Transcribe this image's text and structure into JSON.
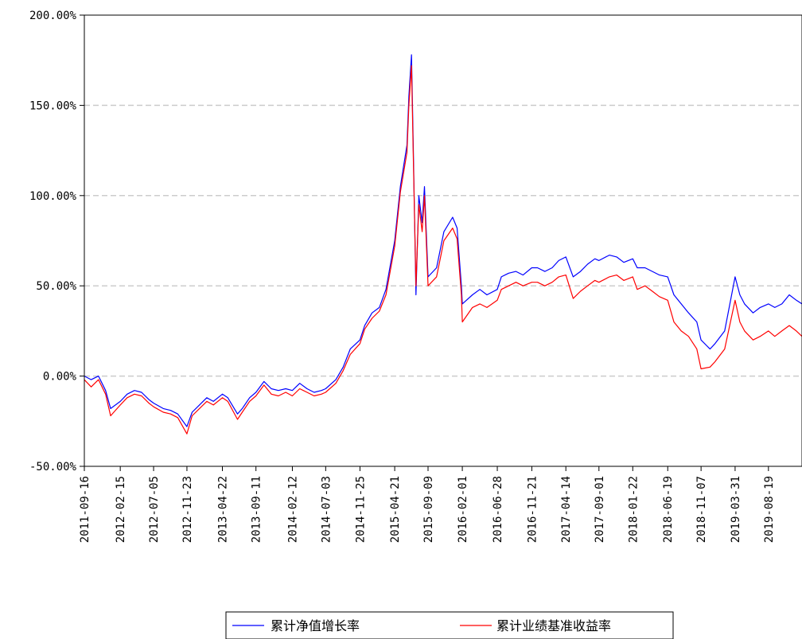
{
  "chart_data": {
    "type": "line",
    "title": "",
    "xlabel": "",
    "ylabel": "",
    "ylim": [
      -0.5,
      2.0
    ],
    "y_ticks": [
      {
        "value": 2.0,
        "label": "200.00%"
      },
      {
        "value": 1.5,
        "label": "150.00%"
      },
      {
        "value": 1.0,
        "label": "100.00%"
      },
      {
        "value": 0.5,
        "label": "50.00%"
      },
      {
        "value": 0.0,
        "label": "0.00%"
      },
      {
        "value": -0.5,
        "label": "-50.00%"
      }
    ],
    "grid": "horizontal dashed",
    "legend_position": "bottom-center",
    "x_ticks": [
      "2011-09-16",
      "2012-02-15",
      "2012-07-05",
      "2012-11-23",
      "2013-04-22",
      "2013-09-11",
      "2014-02-12",
      "2014-07-03",
      "2014-11-25",
      "2015-04-21",
      "2015-09-09",
      "2016-02-01",
      "2016-06-28",
      "2016-11-21",
      "2017-04-14",
      "2017-09-01",
      "2018-01-22",
      "2018-06-19",
      "2018-11-07",
      "2019-03-31",
      "2019-08-19"
    ],
    "x_range": [
      "2011-09-16",
      "2020-01-08"
    ],
    "x": [
      "2011-09-16",
      "2011-10-15",
      "2011-11-15",
      "2011-12-15",
      "2012-01-05",
      "2012-02-15",
      "2012-03-15",
      "2012-04-15",
      "2012-05-15",
      "2012-06-15",
      "2012-07-05",
      "2012-08-15",
      "2012-09-15",
      "2012-10-15",
      "2012-11-23",
      "2012-12-15",
      "2013-01-15",
      "2013-02-15",
      "2013-03-15",
      "2013-04-22",
      "2013-05-15",
      "2013-06-25",
      "2013-07-15",
      "2013-08-15",
      "2013-09-11",
      "2013-10-15",
      "2013-11-15",
      "2013-12-15",
      "2014-01-15",
      "2014-02-12",
      "2014-03-15",
      "2014-04-15",
      "2014-05-15",
      "2014-06-15",
      "2014-07-03",
      "2014-08-15",
      "2014-09-15",
      "2014-10-15",
      "2014-11-25",
      "2014-12-15",
      "2015-01-15",
      "2015-02-15",
      "2015-03-15",
      "2015-04-21",
      "2015-05-15",
      "2015-06-12",
      "2015-06-20",
      "2015-07-01",
      "2015-07-08",
      "2015-07-20",
      "2015-08-01",
      "2015-08-15",
      "2015-08-25",
      "2015-09-09",
      "2015-10-15",
      "2015-11-15",
      "2015-12-22",
      "2016-01-10",
      "2016-01-28",
      "2016-02-01",
      "2016-03-15",
      "2016-04-15",
      "2016-05-15",
      "2016-06-28",
      "2016-07-15",
      "2016-08-15",
      "2016-09-15",
      "2016-10-15",
      "2016-11-21",
      "2016-12-15",
      "2017-01-15",
      "2017-02-15",
      "2017-03-15",
      "2017-04-14",
      "2017-05-15",
      "2017-06-15",
      "2017-07-15",
      "2017-08-15",
      "2017-09-01",
      "2017-10-15",
      "2017-11-15",
      "2017-12-15",
      "2018-01-22",
      "2018-02-10",
      "2018-03-15",
      "2018-04-15",
      "2018-05-15",
      "2018-06-19",
      "2018-07-15",
      "2018-08-15",
      "2018-09-15",
      "2018-10-20",
      "2018-11-07",
      "2018-12-15",
      "2019-01-05",
      "2019-02-15",
      "2019-03-31",
      "2019-04-20",
      "2019-05-10",
      "2019-06-15",
      "2019-07-15",
      "2019-08-19",
      "2019-09-15",
      "2019-10-15",
      "2019-11-15",
      "2019-12-15",
      "2020-01-08"
    ],
    "series": [
      {
        "name": "累计净值增长率",
        "color": "#0000ff",
        "values": [
          0.0,
          -0.02,
          0.0,
          -0.08,
          -0.18,
          -0.14,
          -0.1,
          -0.08,
          -0.09,
          -0.13,
          -0.15,
          -0.18,
          -0.19,
          -0.21,
          -0.28,
          -0.2,
          -0.16,
          -0.12,
          -0.14,
          -0.1,
          -0.12,
          -0.21,
          -0.18,
          -0.12,
          -0.09,
          -0.03,
          -0.07,
          -0.08,
          -0.07,
          -0.08,
          -0.04,
          -0.07,
          -0.09,
          -0.08,
          -0.07,
          -0.02,
          0.05,
          0.15,
          0.2,
          0.28,
          0.35,
          0.38,
          0.48,
          0.75,
          1.05,
          1.28,
          1.55,
          1.78,
          1.3,
          0.45,
          1.0,
          0.85,
          1.05,
          0.55,
          0.6,
          0.8,
          0.88,
          0.82,
          0.5,
          0.4,
          0.45,
          0.48,
          0.45,
          0.48,
          0.55,
          0.57,
          0.58,
          0.56,
          0.6,
          0.6,
          0.58,
          0.6,
          0.64,
          0.66,
          0.55,
          0.58,
          0.62,
          0.65,
          0.64,
          0.67,
          0.66,
          0.63,
          0.65,
          0.6,
          0.6,
          0.58,
          0.56,
          0.55,
          0.45,
          0.4,
          0.35,
          0.3,
          0.2,
          0.15,
          0.18,
          0.25,
          0.55,
          0.45,
          0.4,
          0.35,
          0.38,
          0.4,
          0.38,
          0.4,
          0.45,
          0.42,
          0.4
        ]
      },
      {
        "name": "累计业绩基准收益率",
        "color": "#ff0000",
        "values": [
          -0.02,
          -0.06,
          -0.02,
          -0.1,
          -0.22,
          -0.16,
          -0.12,
          -0.1,
          -0.11,
          -0.15,
          -0.17,
          -0.2,
          -0.21,
          -0.23,
          -0.32,
          -0.22,
          -0.18,
          -0.14,
          -0.16,
          -0.12,
          -0.14,
          -0.24,
          -0.2,
          -0.14,
          -0.11,
          -0.05,
          -0.1,
          -0.11,
          -0.09,
          -0.11,
          -0.07,
          -0.09,
          -0.11,
          -0.1,
          -0.09,
          -0.04,
          0.03,
          0.12,
          0.18,
          0.26,
          0.32,
          0.36,
          0.45,
          0.72,
          1.02,
          1.24,
          1.5,
          1.72,
          1.25,
          0.5,
          0.95,
          0.8,
          1.0,
          0.5,
          0.55,
          0.75,
          0.82,
          0.76,
          0.45,
          0.3,
          0.38,
          0.4,
          0.38,
          0.42,
          0.48,
          0.5,
          0.52,
          0.5,
          0.52,
          0.52,
          0.5,
          0.52,
          0.55,
          0.56,
          0.43,
          0.47,
          0.5,
          0.53,
          0.52,
          0.55,
          0.56,
          0.53,
          0.55,
          0.48,
          0.5,
          0.47,
          0.44,
          0.42,
          0.3,
          0.25,
          0.22,
          0.15,
          0.04,
          0.05,
          0.08,
          0.15,
          0.42,
          0.3,
          0.25,
          0.2,
          0.22,
          0.25,
          0.22,
          0.25,
          0.28,
          0.25,
          0.22
        ]
      }
    ]
  }
}
